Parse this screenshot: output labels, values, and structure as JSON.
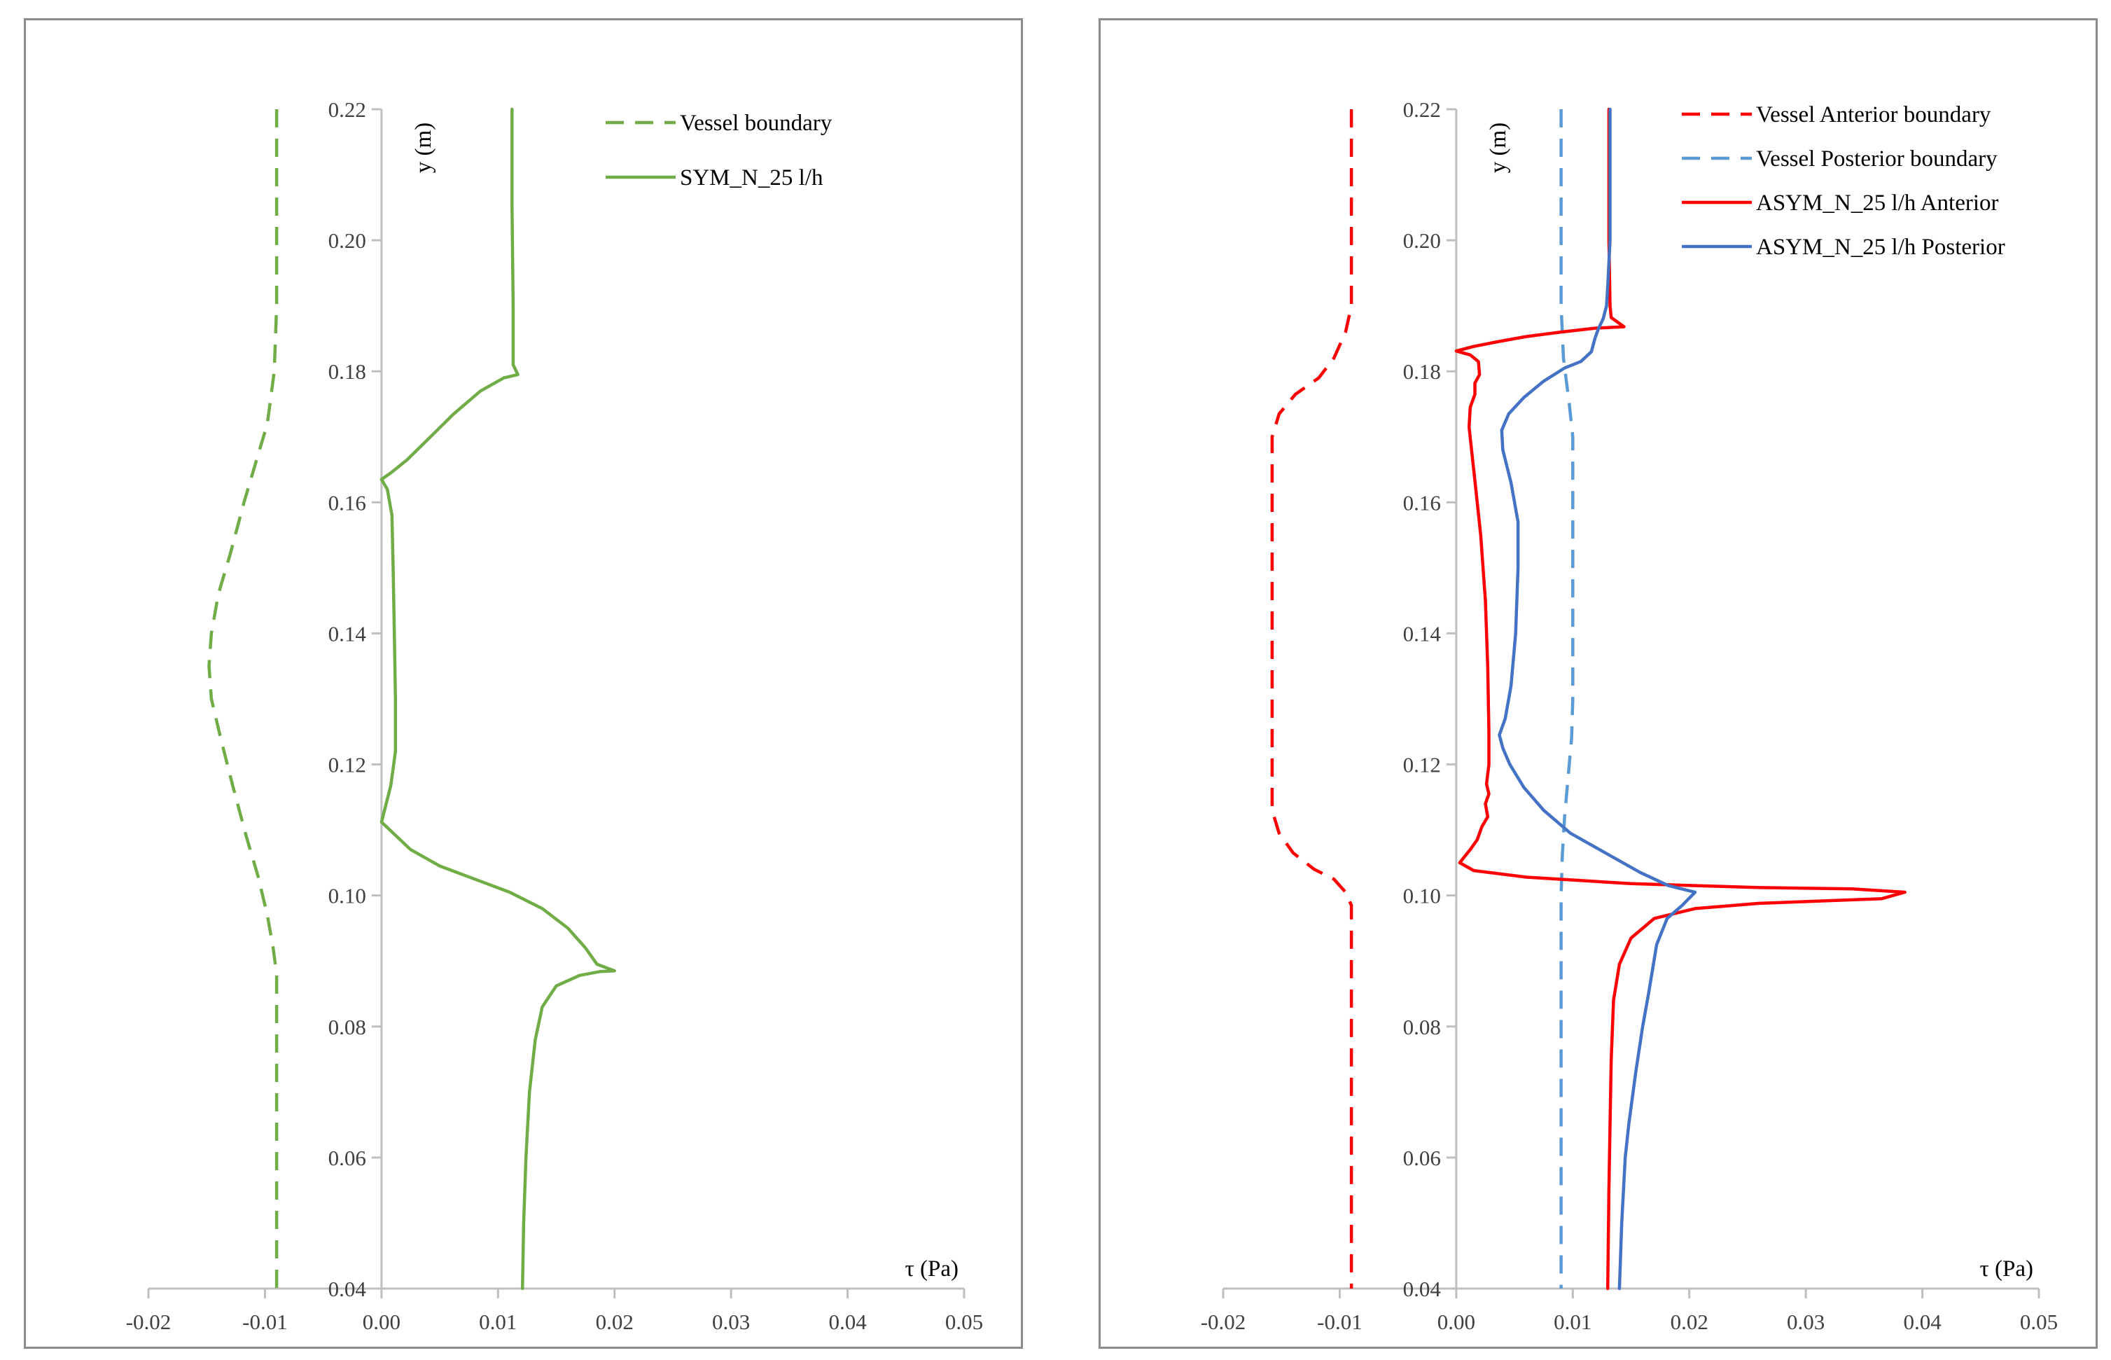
{
  "chart_data": [
    {
      "type": "line",
      "panel": "left",
      "xlabel": "τ (Pa)",
      "ylabel": "y (m)",
      "xlim": [
        -0.02,
        0.05
      ],
      "ylim": [
        0.04,
        0.22
      ],
      "xticks": [
        "-0.02",
        "-0.01",
        "0.00",
        "0.01",
        "0.02",
        "0.03",
        "0.04",
        "0.05"
      ],
      "yticks": [
        "0.04",
        "0.06",
        "0.08",
        "0.10",
        "0.12",
        "0.14",
        "0.16",
        "0.18",
        "0.20",
        "0.22"
      ],
      "grid": false,
      "legend_position": "top-right",
      "series": [
        {
          "name": "Vessel boundary",
          "color": "#70ad47",
          "dashed": true,
          "points": [
            [
              -0.009,
              0.22
            ],
            [
              -0.009,
              0.19
            ],
            [
              -0.0092,
              0.18
            ],
            [
              -0.0098,
              0.172
            ],
            [
              -0.0108,
              0.166
            ],
            [
              -0.0118,
              0.16
            ],
            [
              -0.013,
              0.152
            ],
            [
              -0.014,
              0.146
            ],
            [
              -0.0146,
              0.14
            ],
            [
              -0.0148,
              0.135
            ],
            [
              -0.0146,
              0.13
            ],
            [
              -0.0138,
              0.124
            ],
            [
              -0.0128,
              0.117
            ],
            [
              -0.0116,
              0.109
            ],
            [
              -0.0106,
              0.103
            ],
            [
              -0.0098,
              0.097
            ],
            [
              -0.0093,
              0.092
            ],
            [
              -0.009,
              0.088
            ],
            [
              -0.009,
              0.04
            ]
          ]
        },
        {
          "name": "SYM_N_25 l/h",
          "color": "#70ad47",
          "dashed": false,
          "points": [
            [
              0.0112,
              0.22
            ],
            [
              0.0112,
              0.205
            ],
            [
              0.0113,
              0.19
            ],
            [
              0.0113,
              0.181
            ],
            [
              0.0117,
              0.1795
            ],
            [
              0.0105,
              0.179
            ],
            [
              0.0085,
              0.177
            ],
            [
              0.0062,
              0.1735
            ],
            [
              0.0042,
              0.17
            ],
            [
              0.0022,
              0.1665
            ],
            [
              0.0008,
              0.1645
            ],
            [
              0.0,
              0.1635
            ],
            [
              0.0005,
              0.162
            ],
            [
              0.0009,
              0.158
            ],
            [
              0.001,
              0.15
            ],
            [
              0.0011,
              0.14
            ],
            [
              0.0012,
              0.13
            ],
            [
              0.0012,
              0.122
            ],
            [
              0.0008,
              0.1168
            ],
            [
              0.0,
              0.1112
            ],
            [
              0.0025,
              0.107
            ],
            [
              0.005,
              0.1045
            ],
            [
              0.008,
              0.1025
            ],
            [
              0.011,
              0.1005
            ],
            [
              0.0138,
              0.098
            ],
            [
              0.016,
              0.095
            ],
            [
              0.0175,
              0.092
            ],
            [
              0.0185,
              0.0895
            ],
            [
              0.02,
              0.0885
            ],
            [
              0.0188,
              0.0884
            ],
            [
              0.017,
              0.0878
            ],
            [
              0.015,
              0.0862
            ],
            [
              0.0138,
              0.083
            ],
            [
              0.0132,
              0.078
            ],
            [
              0.0127,
              0.07
            ],
            [
              0.0124,
              0.06
            ],
            [
              0.0122,
              0.05
            ],
            [
              0.0121,
              0.04
            ]
          ]
        }
      ]
    },
    {
      "type": "line",
      "panel": "right",
      "xlabel": "τ (Pa)",
      "ylabel": "y (m)",
      "xlim": [
        -0.02,
        0.05
      ],
      "ylim": [
        0.04,
        0.22
      ],
      "xticks": [
        "-0.02",
        "-0.01",
        "0.00",
        "0.01",
        "0.02",
        "0.03",
        "0.04",
        "0.05"
      ],
      "yticks": [
        "0.04",
        "0.06",
        "0.08",
        "0.10",
        "0.12",
        "0.14",
        "0.16",
        "0.18",
        "0.20",
        "0.22"
      ],
      "grid": false,
      "legend_position": "top-right",
      "series": [
        {
          "name": "Vessel Anterior boundary",
          "color": "#ff0000",
          "dashed": true,
          "points": [
            [
              -0.009,
              0.22
            ],
            [
              -0.009,
              0.19
            ],
            [
              -0.0095,
              0.186
            ],
            [
              -0.0105,
              0.182
            ],
            [
              -0.0118,
              0.179
            ],
            [
              -0.0138,
              0.1765
            ],
            [
              -0.0152,
              0.1735
            ],
            [
              -0.0158,
              0.17
            ],
            [
              -0.0158,
              0.16
            ],
            [
              -0.0158,
              0.12
            ],
            [
              -0.0158,
              0.113
            ],
            [
              -0.0152,
              0.1095
            ],
            [
              -0.014,
              0.1065
            ],
            [
              -0.0122,
              0.104
            ],
            [
              -0.0105,
              0.1025
            ],
            [
              -0.0095,
              0.1005
            ],
            [
              -0.009,
              0.0985
            ],
            [
              -0.009,
              0.04
            ]
          ]
        },
        {
          "name": "Vessel Posterior boundary",
          "color": "#5b9bd5",
          "dashed": true,
          "points": [
            [
              0.009,
              0.22
            ],
            [
              0.009,
              0.19
            ],
            [
              0.0092,
              0.182
            ],
            [
              0.0097,
              0.175
            ],
            [
              0.01,
              0.17
            ],
            [
              0.01,
              0.16
            ],
            [
              0.01,
              0.13
            ],
            [
              0.0099,
              0.124
            ],
            [
              0.0096,
              0.118
            ],
            [
              0.0093,
              0.112
            ],
            [
              0.0091,
              0.106
            ],
            [
              0.009,
              0.1
            ],
            [
              0.009,
              0.04
            ]
          ]
        },
        {
          "name": "ASYM_N_25 l/h Anterior",
          "color": "#ff0000",
          "dashed": false,
          "points": [
            [
              0.0131,
              0.22
            ],
            [
              0.0131,
              0.2
            ],
            [
              0.0132,
              0.19
            ],
            [
              0.0133,
              0.1882
            ],
            [
              0.0144,
              0.1868
            ],
            [
              0.012,
              0.1866
            ],
            [
              0.009,
              0.186
            ],
            [
              0.006,
              0.1853
            ],
            [
              0.0035,
              0.1845
            ],
            [
              0.0015,
              0.1838
            ],
            [
              0.0,
              0.1831
            ],
            [
              0.0012,
              0.1825
            ],
            [
              0.0019,
              0.1815
            ],
            [
              0.002,
              0.1795
            ],
            [
              0.0016,
              0.1782
            ],
            [
              0.0016,
              0.1765
            ],
            [
              0.0012,
              0.1745
            ],
            [
              0.0011,
              0.1715
            ],
            [
              0.0015,
              0.165
            ],
            [
              0.0021,
              0.155
            ],
            [
              0.0025,
              0.145
            ],
            [
              0.0027,
              0.135
            ],
            [
              0.0028,
              0.125
            ],
            [
              0.0028,
              0.12
            ],
            [
              0.0026,
              0.117
            ],
            [
              0.0028,
              0.1155
            ],
            [
              0.0025,
              0.114
            ],
            [
              0.0027,
              0.112
            ],
            [
              0.0022,
              0.1105
            ],
            [
              0.0018,
              0.1085
            ],
            [
              0.0012,
              0.107
            ],
            [
              0.0003,
              0.105
            ],
            [
              0.0015,
              0.1038
            ],
            [
              0.006,
              0.1028
            ],
            [
              0.015,
              0.1018
            ],
            [
              0.026,
              0.1012
            ],
            [
              0.034,
              0.101
            ],
            [
              0.0385,
              0.1005
            ],
            [
              0.0365,
              0.0995
            ],
            [
              0.026,
              0.0988
            ],
            [
              0.0205,
              0.098
            ],
            [
              0.017,
              0.0965
            ],
            [
              0.015,
              0.0935
            ],
            [
              0.014,
              0.0895
            ],
            [
              0.0135,
              0.084
            ],
            [
              0.0133,
              0.075
            ],
            [
              0.0132,
              0.065
            ],
            [
              0.0131,
              0.055
            ],
            [
              0.013,
              0.04
            ]
          ]
        },
        {
          "name": "ASYM_N_25 l/h Posterior",
          "color": "#4472c4",
          "dashed": false,
          "points": [
            [
              0.0132,
              0.22
            ],
            [
              0.0132,
              0.2
            ],
            [
              0.013,
              0.193
            ],
            [
              0.0129,
              0.19
            ],
            [
              0.0126,
              0.188
            ],
            [
              0.0122,
              0.1865
            ],
            [
              0.0119,
              0.185
            ],
            [
              0.0116,
              0.183
            ],
            [
              0.0107,
              0.1815
            ],
            [
              0.0093,
              0.1805
            ],
            [
              0.0075,
              0.1785
            ],
            [
              0.0058,
              0.176
            ],
            [
              0.0045,
              0.1735
            ],
            [
              0.0039,
              0.171
            ],
            [
              0.004,
              0.168
            ],
            [
              0.0047,
              0.163
            ],
            [
              0.0053,
              0.157
            ],
            [
              0.0053,
              0.15
            ],
            [
              0.0051,
              0.14
            ],
            [
              0.0047,
              0.132
            ],
            [
              0.0042,
              0.127
            ],
            [
              0.0037,
              0.1245
            ],
            [
              0.004,
              0.1225
            ],
            [
              0.0046,
              0.12
            ],
            [
              0.0058,
              0.1165
            ],
            [
              0.0075,
              0.113
            ],
            [
              0.0098,
              0.1095
            ],
            [
              0.0128,
              0.1065
            ],
            [
              0.0158,
              0.1035
            ],
            [
              0.0182,
              0.1015
            ],
            [
              0.0205,
              0.1005
            ],
            [
              0.0194,
              0.0985
            ],
            [
              0.0181,
              0.0965
            ],
            [
              0.0172,
              0.0925
            ],
            [
              0.0165,
              0.085
            ],
            [
              0.016,
              0.08
            ],
            [
              0.0154,
              0.073
            ],
            [
              0.0148,
              0.065
            ],
            [
              0.0145,
              0.06
            ],
            [
              0.0142,
              0.05
            ],
            [
              0.014,
              0.04
            ]
          ]
        }
      ]
    }
  ]
}
